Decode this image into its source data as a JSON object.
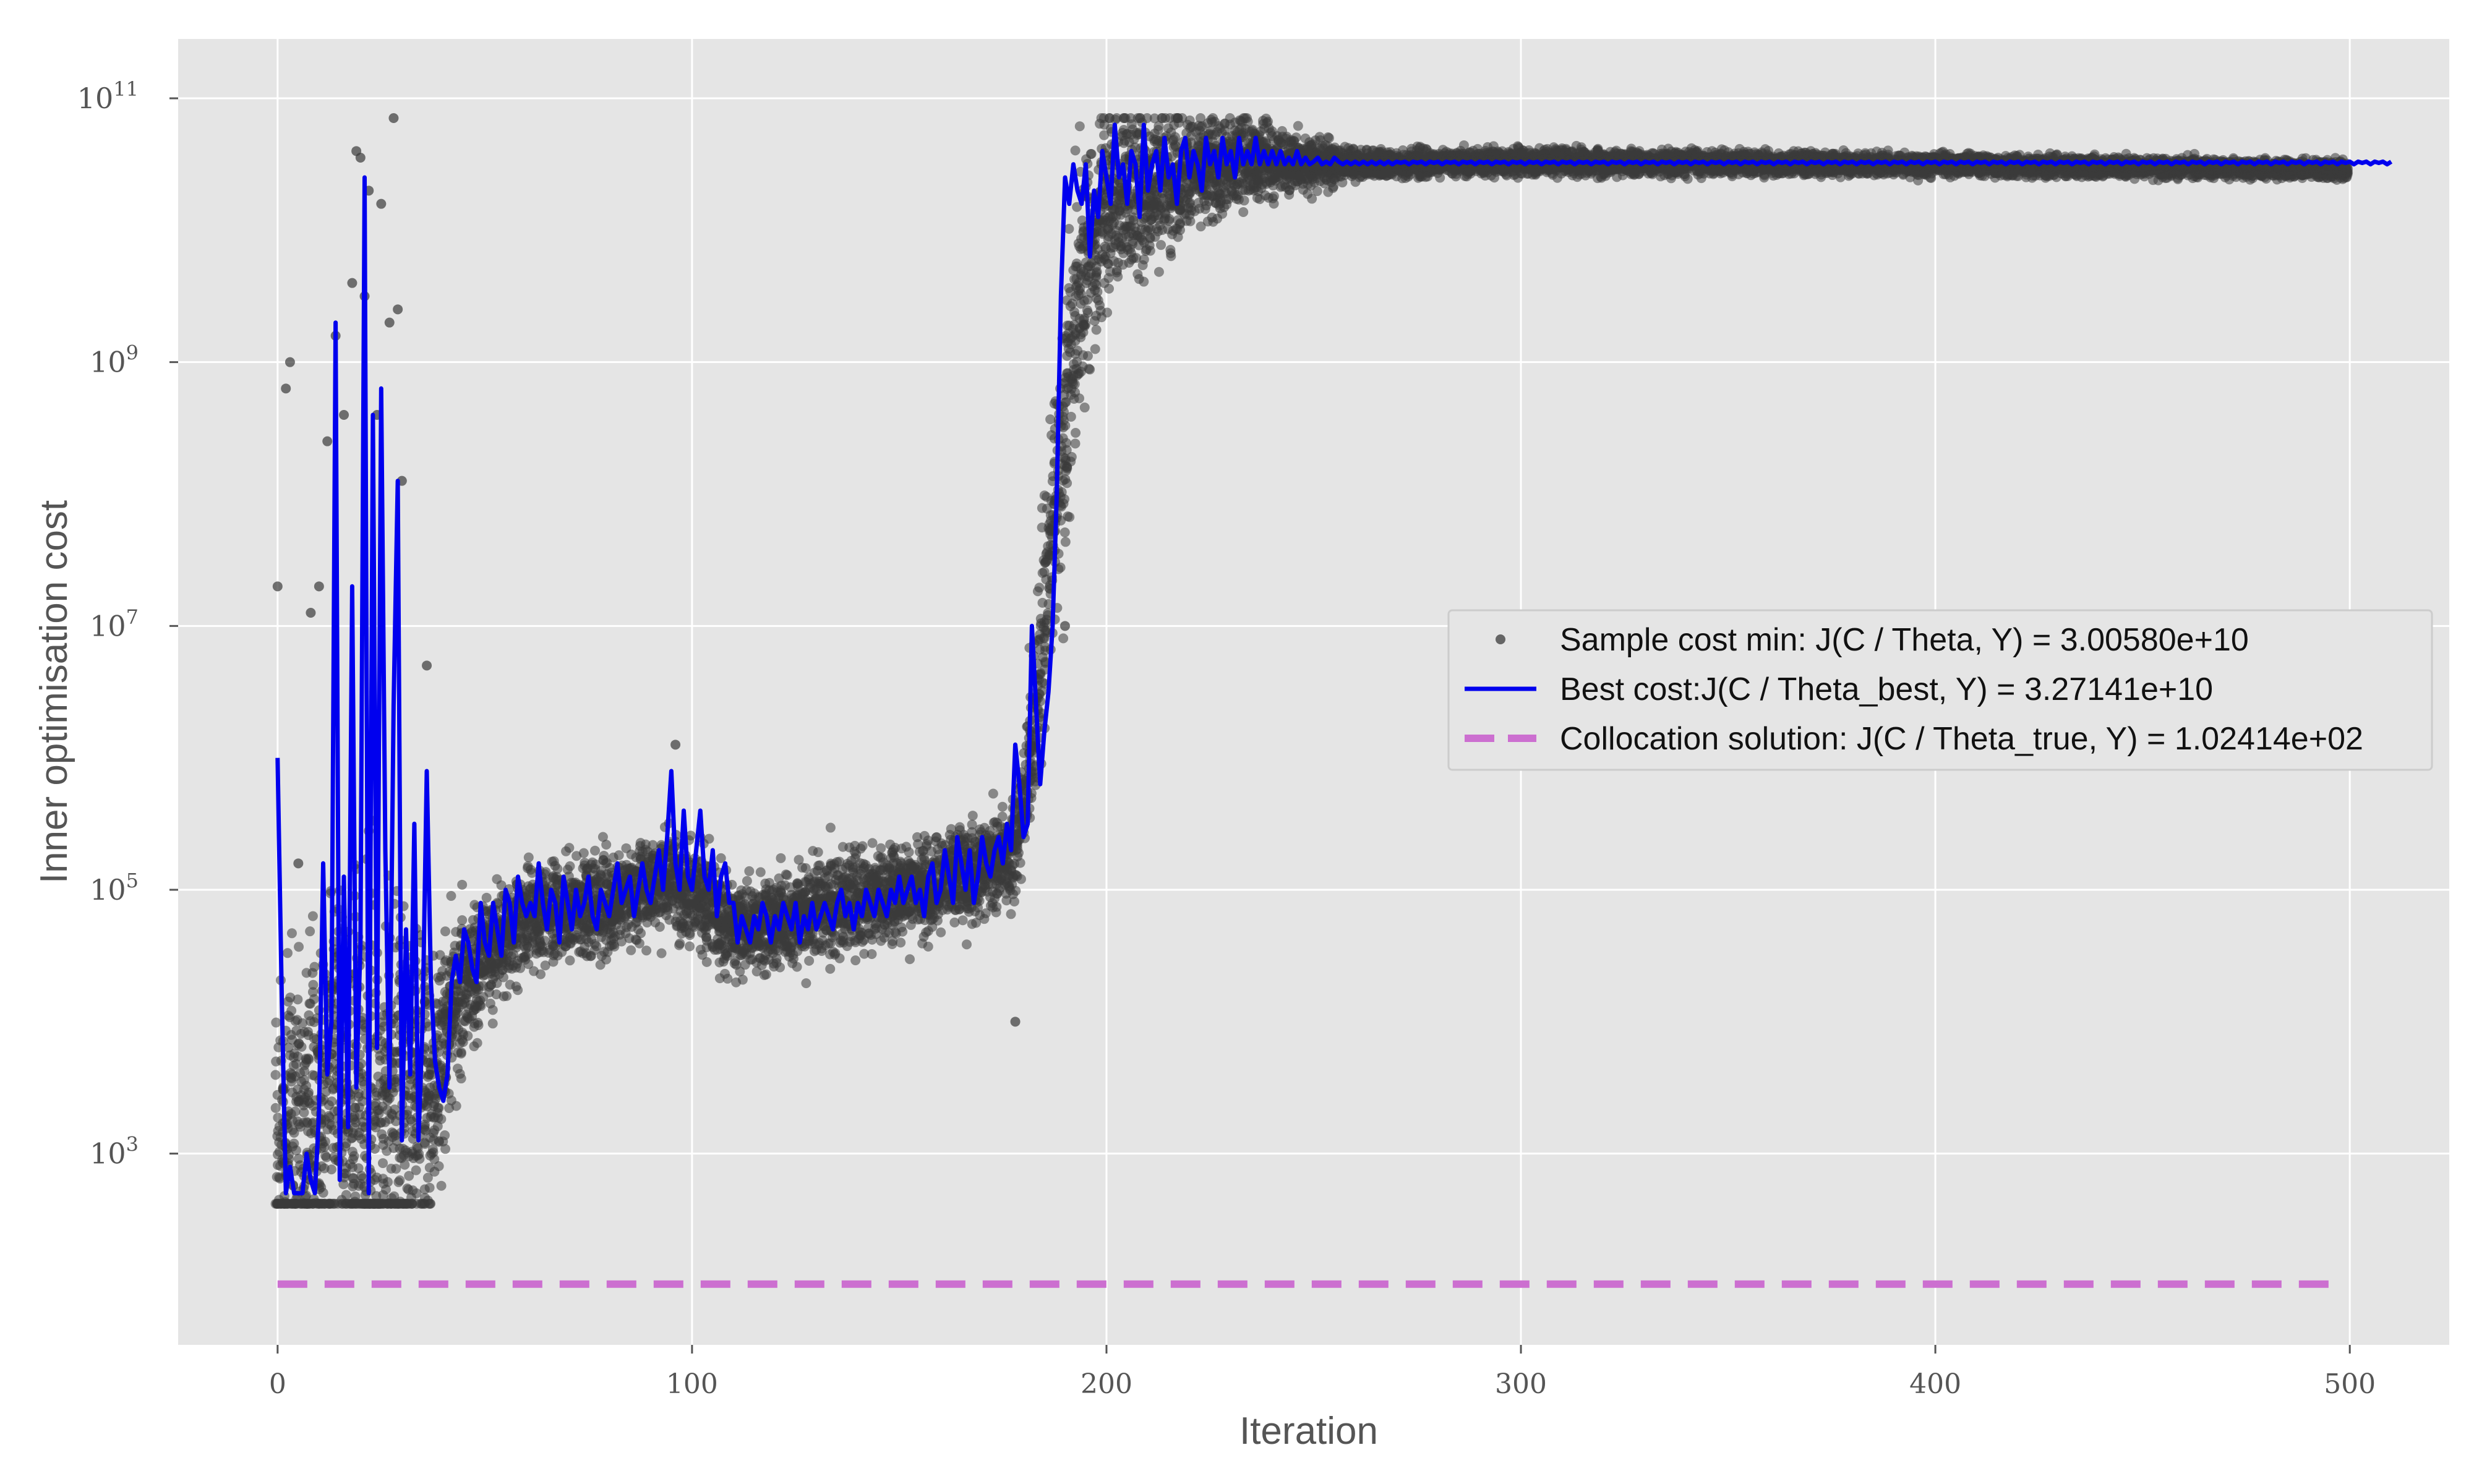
{
  "chart_data": {
    "type": "scatter",
    "title": "",
    "xlabel": "Iteration",
    "ylabel": "Inner optimisation cost",
    "xlim": [
      -24,
      524
    ],
    "ylim_log10": [
      1.55,
      11.45
    ],
    "y_scale": "log",
    "grid": true,
    "legend_position": "right",
    "x_ticks": [
      {
        "label": "0",
        "value": 0
      },
      {
        "label": "100",
        "value": 100
      },
      {
        "label": "200",
        "value": 200
      },
      {
        "label": "300",
        "value": 300
      },
      {
        "label": "400",
        "value": 400
      },
      {
        "label": "500",
        "value": 500
      }
    ],
    "y_ticks": [
      {
        "base": "10",
        "exp": "3",
        "log10": 3
      },
      {
        "base": "10",
        "exp": "5",
        "log10": 5
      },
      {
        "base": "10",
        "exp": "7",
        "log10": 7
      },
      {
        "base": "10",
        "exp": "9",
        "log10": 9
      },
      {
        "base": "10",
        "exp": "11",
        "log10": 11
      }
    ],
    "series": [
      {
        "name": "Sample cost min: J(C / Theta, Y) = 3.00580e+10",
        "kind": "scatter",
        "color": "#3a3a3a",
        "points_per_iteration": 25,
        "x_range": [
          0,
          499
        ],
        "log10_center_by_iteration": [
          [
            0,
            2.9
          ],
          [
            4,
            3.3
          ],
          [
            8,
            3.3
          ],
          [
            14,
            3.4
          ],
          [
            22,
            3.2
          ],
          [
            30,
            3.3
          ],
          [
            36,
            3.5
          ],
          [
            40,
            3.8
          ],
          [
            44,
            4.2
          ],
          [
            50,
            4.5
          ],
          [
            60,
            4.8
          ],
          [
            80,
            4.9
          ],
          [
            95,
            5.1
          ],
          [
            110,
            4.7
          ],
          [
            125,
            4.8
          ],
          [
            150,
            5.0
          ],
          [
            165,
            5.1
          ],
          [
            178,
            5.3
          ],
          [
            183,
            6.3
          ],
          [
            186,
            7.5
          ],
          [
            190,
            8.5
          ],
          [
            194,
            9.6
          ],
          [
            200,
            10.2
          ],
          [
            215,
            10.4
          ],
          [
            235,
            10.55
          ],
          [
            250,
            10.5
          ],
          [
            300,
            10.52
          ],
          [
            400,
            10.5
          ],
          [
            499,
            10.46
          ]
        ],
        "log10_spread_by_iteration": [
          [
            0,
            1.2
          ],
          [
            30,
            1.8
          ],
          [
            36,
            1.0
          ],
          [
            45,
            0.5
          ],
          [
            60,
            0.35
          ],
          [
            180,
            0.35
          ],
          [
            183,
            0.7
          ],
          [
            190,
            1.0
          ],
          [
            200,
            0.7
          ],
          [
            215,
            0.5
          ],
          [
            240,
            0.25
          ],
          [
            260,
            0.1
          ],
          [
            499,
            0.06
          ]
        ],
        "highlight_points_log10": [
          [
            0,
            7.3
          ],
          [
            2,
            8.8
          ],
          [
            3,
            9.0
          ],
          [
            5,
            5.2
          ],
          [
            8,
            7.1
          ],
          [
            10,
            7.3
          ],
          [
            12,
            8.4
          ],
          [
            14,
            9.2
          ],
          [
            16,
            8.6
          ],
          [
            18,
            9.6
          ],
          [
            19,
            10.6
          ],
          [
            20,
            10.55
          ],
          [
            21,
            9.5
          ],
          [
            22,
            10.3
          ],
          [
            24,
            8.6
          ],
          [
            25,
            10.2
          ],
          [
            27,
            9.3
          ],
          [
            28,
            10.85
          ],
          [
            29,
            9.4
          ],
          [
            30,
            8.1
          ],
          [
            36,
            6.7
          ],
          [
            96,
            6.1
          ],
          [
            178,
            4.0
          ],
          [
            190,
            7.0
          ]
        ]
      },
      {
        "name": "Best cost:J(C / Theta_best, Y) = 3.27141e+10",
        "kind": "line",
        "color": "#0000ee",
        "x_start": 0,
        "log10_values": [
          6.0,
          4.2,
          2.7,
          2.9,
          2.7,
          2.7,
          2.7,
          3.0,
          2.8,
          2.7,
          3.3,
          5.2,
          3.6,
          4.0,
          9.3,
          2.8,
          5.1,
          3.2,
          7.3,
          3.5,
          4.6,
          10.4,
          2.7,
          8.6,
          3.8,
          8.8,
          5.3,
          3.5,
          6.4,
          8.1,
          3.1,
          4.7,
          3.6,
          5.5,
          3.1,
          4.0,
          5.9,
          4.3,
          3.7,
          3.5,
          3.4,
          3.6,
          4.3,
          4.5,
          4.3,
          4.7,
          4.6,
          4.4,
          4.3,
          4.9,
          4.6,
          4.5,
          4.9,
          4.7,
          4.5,
          5.0,
          4.9,
          4.6,
          5.1,
          4.9,
          4.8,
          4.9,
          4.8,
          5.2,
          4.9,
          4.7,
          5.0,
          4.9,
          4.6,
          5.1,
          4.9,
          4.7,
          5.0,
          4.8,
          4.9,
          5.1,
          4.8,
          4.7,
          5.0,
          4.9,
          4.8,
          5.0,
          5.2,
          4.9,
          5.0,
          5.1,
          4.8,
          5.0,
          5.2,
          5.0,
          4.9,
          5.1,
          5.3,
          5.0,
          5.4,
          5.9,
          5.2,
          5.0,
          5.6,
          5.1,
          5.0,
          5.3,
          5.6,
          5.1,
          5.0,
          5.3,
          4.8,
          5.1,
          5.2,
          4.9,
          4.9,
          4.6,
          4.8,
          4.7,
          4.6,
          4.8,
          4.7,
          4.9,
          4.8,
          4.6,
          4.8,
          4.7,
          4.9,
          4.8,
          4.7,
          4.9,
          4.6,
          4.8,
          4.7,
          4.9,
          4.7,
          4.8,
          4.9,
          4.8,
          4.7,
          4.9,
          5.0,
          4.8,
          4.9,
          4.7,
          4.9,
          4.8,
          5.0,
          4.9,
          4.8,
          5.0,
          4.9,
          4.8,
          5.0,
          4.9,
          5.1,
          4.9,
          5.0,
          5.1,
          4.9,
          5.0,
          4.8,
          5.1,
          5.2,
          4.9,
          5.0,
          5.3,
          5.1,
          4.9,
          5.4,
          5.2,
          5.0,
          5.3,
          4.9,
          5.1,
          5.4,
          5.2,
          5.1,
          5.3,
          5.4,
          5.2,
          5.5,
          5.3,
          6.1,
          5.8,
          5.4,
          5.5,
          7.0,
          6.4,
          5.8,
          6.2,
          6.5,
          7.0,
          8.0,
          9.5,
          10.4,
          10.2,
          10.5,
          10.3,
          10.2,
          10.5,
          9.8,
          10.3,
          10.1,
          10.6,
          10.4,
          10.2,
          10.8,
          10.4,
          10.5,
          10.2,
          10.6,
          10.5,
          10.1,
          10.8,
          10.3,
          10.5,
          10.6,
          10.3,
          10.7,
          10.4,
          10.5,
          10.2,
          10.6,
          10.7,
          10.4,
          10.6,
          10.5,
          10.3,
          10.7,
          10.5,
          10.6,
          10.4,
          10.7,
          10.5,
          10.6,
          10.4,
          10.7,
          10.5,
          10.6,
          10.5,
          10.7,
          10.5,
          10.6,
          10.5,
          10.6,
          10.5,
          10.6,
          10.5,
          10.55,
          10.5,
          10.6,
          10.5,
          10.55,
          10.5,
          10.52,
          10.55,
          10.5,
          10.52,
          10.5,
          10.55,
          10.52,
          10.5,
          10.52,
          10.5,
          10.52,
          10.5,
          10.52,
          10.5,
          10.52,
          10.5,
          10.52,
          10.5,
          10.52,
          10.5,
          10.52,
          10.51,
          10.52,
          10.5,
          10.52,
          10.51,
          10.52,
          10.5,
          10.52,
          10.51,
          10.52,
          10.5,
          10.52,
          10.51,
          10.52,
          10.5,
          10.52,
          10.51,
          10.52,
          10.5,
          10.52,
          10.51,
          10.52,
          10.5,
          10.52,
          10.51,
          10.52,
          10.5,
          10.52,
          10.51,
          10.52,
          10.5,
          10.52,
          10.51,
          10.52,
          10.5,
          10.52,
          10.51,
          10.52,
          10.5,
          10.52,
          10.51,
          10.52,
          10.5,
          10.52,
          10.51,
          10.52,
          10.5,
          10.52,
          10.51,
          10.52,
          10.5,
          10.52,
          10.51,
          10.52,
          10.5,
          10.52,
          10.51,
          10.52,
          10.5,
          10.52,
          10.51,
          10.52,
          10.5,
          10.52,
          10.51,
          10.52,
          10.5,
          10.52,
          10.51,
          10.52,
          10.5,
          10.52,
          10.51,
          10.52,
          10.5,
          10.52,
          10.51,
          10.52,
          10.5,
          10.52,
          10.51,
          10.52,
          10.5,
          10.52,
          10.51,
          10.52,
          10.5,
          10.52,
          10.51,
          10.52,
          10.5,
          10.52,
          10.51,
          10.52,
          10.5,
          10.52,
          10.51,
          10.52,
          10.5,
          10.52,
          10.51,
          10.52,
          10.5,
          10.52,
          10.51,
          10.52,
          10.5,
          10.52,
          10.51,
          10.52,
          10.5,
          10.52,
          10.51,
          10.52,
          10.5,
          10.52,
          10.51,
          10.52,
          10.5,
          10.52,
          10.51,
          10.52,
          10.5,
          10.52,
          10.51,
          10.52,
          10.5,
          10.52,
          10.51,
          10.52,
          10.5,
          10.52,
          10.51,
          10.52,
          10.5,
          10.52,
          10.51,
          10.52,
          10.5,
          10.52,
          10.51,
          10.52,
          10.5,
          10.52,
          10.51,
          10.52,
          10.5,
          10.52,
          10.51,
          10.52,
          10.5,
          10.52,
          10.51,
          10.52,
          10.5,
          10.52,
          10.51,
          10.52,
          10.5,
          10.52,
          10.51,
          10.52,
          10.5,
          10.52,
          10.51,
          10.52,
          10.5,
          10.52,
          10.51,
          10.52,
          10.5,
          10.52,
          10.51,
          10.52,
          10.5,
          10.52,
          10.51,
          10.52,
          10.5,
          10.52,
          10.51,
          10.52,
          10.5,
          10.52,
          10.51,
          10.52,
          10.5,
          10.52,
          10.51,
          10.52,
          10.5,
          10.52,
          10.51,
          10.52,
          10.5,
          10.52,
          10.51,
          10.52,
          10.5,
          10.52,
          10.51,
          10.52,
          10.5,
          10.52,
          10.51,
          10.52,
          10.5,
          10.52,
          10.51,
          10.52,
          10.5,
          10.52,
          10.51,
          10.52,
          10.5,
          10.52,
          10.51,
          10.52,
          10.5,
          10.52,
          10.51,
          10.52,
          10.5,
          10.52,
          10.51,
          10.52,
          10.5,
          10.52,
          10.51,
          10.52,
          10.5,
          10.52,
          10.51,
          10.52,
          10.5,
          10.52,
          10.51,
          10.52,
          10.5,
          10.52
        ]
      },
      {
        "name": "Collocation solution: J(C / Theta_true, Y) = 1.02414e+02",
        "kind": "hline",
        "color": "#cc6fd0",
        "value": 102.414,
        "x_range": [
          0,
          499
        ]
      }
    ]
  }
}
